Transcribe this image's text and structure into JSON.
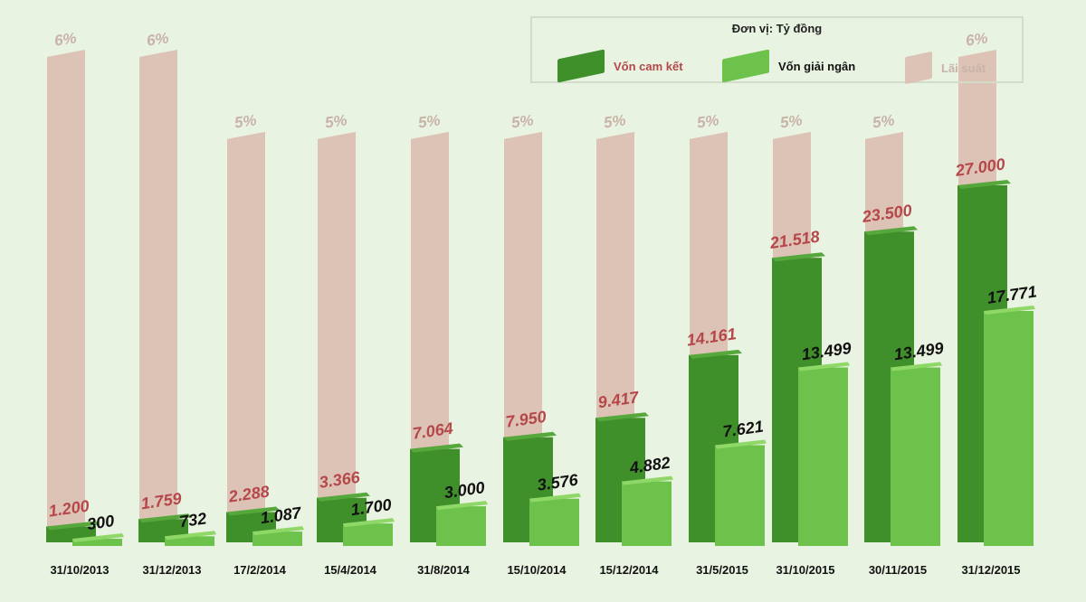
{
  "chart_data": {
    "type": "bar",
    "unit_note": "Đơn vị: Tỷ đồng",
    "categories": [
      "31/10/2013",
      "31/12/2013",
      "17/2/2014",
      "15/4/2014",
      "31/8/2014",
      "15/10/2014",
      "15/12/2014",
      "31/5/2015",
      "31/10/2015",
      "30/11/2015",
      "31/12/2015"
    ],
    "series": [
      {
        "name": "Vốn cam kết",
        "color": "#3f8f2a",
        "label_color": "#b5474a",
        "values": [
          1200,
          1759,
          2288,
          3366,
          7064,
          7950,
          9417,
          14161,
          21518,
          23500,
          27000
        ],
        "labels": [
          "1.200",
          "1.759",
          "2.288",
          "3.366",
          "7.064",
          "7.950",
          "9.417",
          "14.161",
          "21.518",
          "23.500",
          "27.000"
        ]
      },
      {
        "name": "Vốn giải ngân",
        "color": "#6cc24a",
        "label_color": "#111111",
        "values": [
          300,
          732,
          1087,
          1700,
          3000,
          3576,
          4882,
          7621,
          13499,
          13499,
          17771
        ],
        "labels": [
          "300",
          "732",
          "1.087",
          "1.700",
          "3.000",
          "3.576",
          "4.882",
          "7.621",
          "13.499",
          "13.499",
          "17.771"
        ]
      },
      {
        "name": "Lãi suất",
        "color": "#dcc3b5",
        "label_color": "#c9b3a8",
        "values": [
          6,
          6,
          5,
          5,
          5,
          5,
          5,
          5,
          5,
          5,
          6
        ],
        "labels": [
          "6%",
          "6%",
          "5%",
          "5%",
          "5%",
          "5%",
          "5%",
          "5%",
          "5%",
          "5%",
          "6%"
        ]
      }
    ],
    "legend_position": "top-right",
    "grid": false
  }
}
